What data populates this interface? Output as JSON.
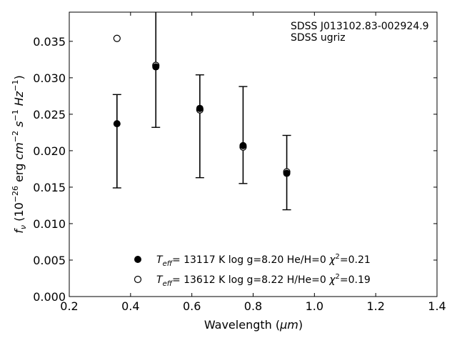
{
  "chart_data": {
    "type": "scatter",
    "xlabel": {
      "main": "Wavelength (",
      "unit": "μm",
      "end": ")"
    },
    "ylabel": {
      "f": "f",
      "nu": "ν",
      "rest": " (10",
      "exp": "−26",
      "erg": " erg ",
      "cm": "cm",
      "cmexp": "−2",
      "s": " s",
      "sexp": "−1",
      "hz": " Hz",
      "hzexp": "−1",
      "close": ")"
    },
    "xlim": [
      0.2,
      1.4
    ],
    "ylim": [
      0.0,
      0.039
    ],
    "x_ticks": [
      0.2,
      0.4,
      0.6,
      0.8,
      1.0,
      1.2,
      1.4
    ],
    "x_tick_labels": [
      "0.2",
      "0.4",
      "0.6",
      "0.8",
      "1.0",
      "1.2",
      "1.4"
    ],
    "y_ticks": [
      0.0,
      0.005,
      0.01,
      0.015,
      0.02,
      0.025,
      0.03,
      0.035
    ],
    "y_tick_labels": [
      "0.000",
      "0.005",
      "0.010",
      "0.015",
      "0.020",
      "0.025",
      "0.030",
      "0.035"
    ],
    "grid": false,
    "annotations": [
      "SDSS J013102.83-002924.9",
      "SDSS ugriz"
    ],
    "series": [
      {
        "marker": "filled-circle",
        "label": {
          "t": "T",
          "sub": "eff",
          "rest": "= 13117 K  log g=8.20  He/H=0  ",
          "chi": "χ",
          "sup": "2",
          "val": "=0.21"
        },
        "points": [
          {
            "x": 0.3557,
            "y": 0.0237,
            "err_low": 0.0149,
            "err_high": 0.0277
          },
          {
            "x": 0.4825,
            "y": 0.0315,
            "err_low": 0.0232,
            "err_high": 0.0395
          },
          {
            "x": 0.6261,
            "y": 0.0258,
            "err_low": 0.0163,
            "err_high": 0.0304
          },
          {
            "x": 0.7672,
            "y": 0.0207,
            "err_low": 0.0155,
            "err_high": 0.0288
          },
          {
            "x": 0.9097,
            "y": 0.0169,
            "err_low": 0.0119,
            "err_high": 0.0221
          }
        ]
      },
      {
        "marker": "open-circle",
        "label": {
          "t": "T",
          "sub": "eff",
          "rest": "= 13612 K  log g=8.22  H/He=0  ",
          "chi": "χ",
          "sup": "2",
          "val": "=0.19"
        },
        "points": [
          {
            "x": 0.3557,
            "y": 0.0354
          },
          {
            "x": 0.4825,
            "y": 0.0317
          },
          {
            "x": 0.6261,
            "y": 0.0256
          },
          {
            "x": 0.7672,
            "y": 0.0205
          },
          {
            "x": 0.9097,
            "y": 0.0171
          }
        ]
      }
    ]
  }
}
